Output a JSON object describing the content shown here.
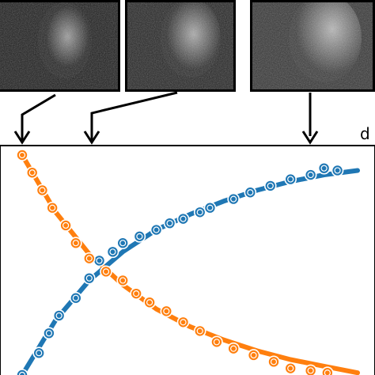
{
  "panel_label": "d",
  "thumbnails": [
    {
      "icon": "noisy-face-image-faint"
    },
    {
      "icon": "noisy-face-image-medium"
    },
    {
      "icon": "noisy-face-image-strong"
    }
  ],
  "colors": {
    "blue": "#1f77b4",
    "orange": "#ff7f0e",
    "frame": "#000000"
  },
  "chart_data": {
    "type": "scatter",
    "title": "",
    "xlabel": "",
    "ylabel": "",
    "xlim": [
      0,
      1
    ],
    "ylim": [
      0,
      1
    ],
    "grid": false,
    "legend": "none",
    "series": [
      {
        "color": "#1f77b4",
        "points": [
          [
            0.0,
            0.0
          ],
          [
            0.05,
            0.1
          ],
          [
            0.08,
            0.19
          ],
          [
            0.11,
            0.27
          ],
          [
            0.16,
            0.35
          ],
          [
            0.2,
            0.44
          ],
          [
            0.23,
            0.52
          ],
          [
            0.27,
            0.56
          ],
          [
            0.3,
            0.6
          ],
          [
            0.35,
            0.63
          ],
          [
            0.4,
            0.66
          ],
          [
            0.44,
            0.69
          ],
          [
            0.48,
            0.71
          ],
          [
            0.53,
            0.74
          ],
          [
            0.56,
            0.76
          ],
          [
            0.63,
            0.8
          ],
          [
            0.68,
            0.83
          ],
          [
            0.74,
            0.86
          ],
          [
            0.8,
            0.89
          ],
          [
            0.86,
            0.91
          ],
          [
            0.9,
            0.94
          ],
          [
            0.94,
            0.93
          ]
        ],
        "fit": [
          [
            0.0,
            0.0
          ],
          [
            0.1,
            0.25
          ],
          [
            0.2,
            0.43
          ],
          [
            0.3,
            0.56
          ],
          [
            0.4,
            0.66
          ],
          [
            0.5,
            0.73
          ],
          [
            0.6,
            0.79
          ],
          [
            0.7,
            0.84
          ],
          [
            0.8,
            0.88
          ],
          [
            0.9,
            0.91
          ],
          [
            1.0,
            0.93
          ]
        ]
      },
      {
        "color": "#ff7f0e",
        "points": [
          [
            0.0,
            1.0
          ],
          [
            0.03,
            0.92
          ],
          [
            0.06,
            0.84
          ],
          [
            0.09,
            0.76
          ],
          [
            0.13,
            0.68
          ],
          [
            0.16,
            0.6
          ],
          [
            0.2,
            0.53
          ],
          [
            0.25,
            0.47
          ],
          [
            0.3,
            0.43
          ],
          [
            0.34,
            0.37
          ],
          [
            0.38,
            0.33
          ],
          [
            0.43,
            0.29
          ],
          [
            0.48,
            0.24
          ],
          [
            0.53,
            0.2
          ],
          [
            0.58,
            0.15
          ],
          [
            0.63,
            0.12
          ],
          [
            0.69,
            0.09
          ],
          [
            0.75,
            0.06
          ],
          [
            0.8,
            0.03
          ],
          [
            0.86,
            0.02
          ],
          [
            0.91,
            0.01
          ]
        ],
        "fit": [
          [
            0.0,
            1.0
          ],
          [
            0.1,
            0.74
          ],
          [
            0.2,
            0.55
          ],
          [
            0.3,
            0.41
          ],
          [
            0.4,
            0.3
          ],
          [
            0.5,
            0.22
          ],
          [
            0.6,
            0.16
          ],
          [
            0.7,
            0.11
          ],
          [
            0.8,
            0.07
          ],
          [
            0.9,
            0.04
          ],
          [
            1.0,
            0.01
          ]
        ]
      }
    ]
  }
}
